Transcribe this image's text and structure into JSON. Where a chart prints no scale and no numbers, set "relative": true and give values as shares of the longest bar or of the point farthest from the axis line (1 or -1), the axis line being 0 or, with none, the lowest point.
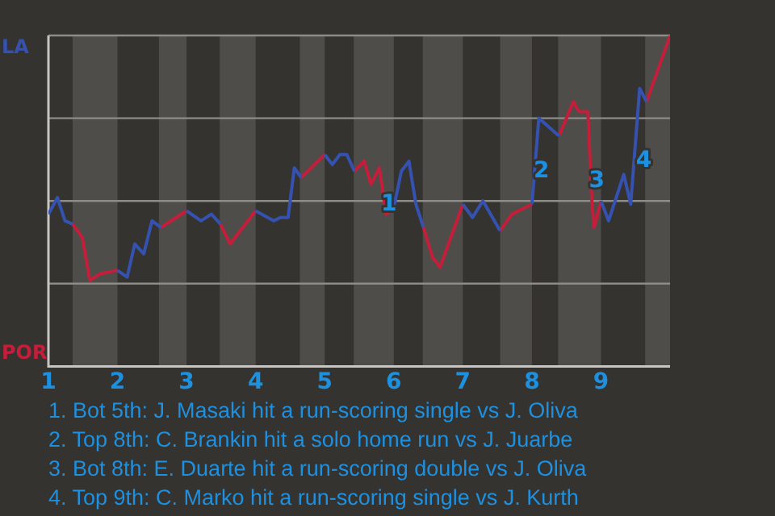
{
  "chart_data": {
    "type": "line",
    "relative": true,
    "series": [
      {
        "name": "LA",
        "color": "#3552b0",
        "x": [
          1.0,
          1.13,
          1.24,
          1.35,
          1.49,
          1.6,
          1.75,
          2.0,
          2.14,
          2.25,
          2.38,
          2.5,
          2.63,
          2.8,
          3.0,
          3.21,
          3.36,
          3.49,
          3.63,
          4.0,
          4.26,
          4.36,
          4.47,
          4.56,
          4.66,
          4.8,
          5.0,
          5.11,
          5.22,
          5.32,
          5.43,
          5.57,
          5.67,
          5.79,
          5.89,
          6.0,
          6.11,
          6.22,
          6.32,
          6.43,
          6.56,
          6.67,
          7.0,
          7.14,
          7.29,
          7.54,
          7.71,
          8.0,
          8.1,
          8.37,
          8.4,
          8.6,
          8.68,
          8.81,
          8.87,
          8.9,
          9.0,
          9.11,
          9.33,
          9.43,
          9.56,
          9.66
        ],
        "values": [
          0.46,
          0.51,
          0.44,
          0.43,
          null,
          null,
          null,
          0.29,
          0.27,
          0.37,
          0.34,
          0.44,
          0.42,
          null,
          0.47,
          0.44,
          0.46,
          0.43,
          null,
          0.47,
          0.44,
          0.45,
          0.45,
          0.6,
          0.57,
          null,
          0.64,
          0.61,
          0.64,
          0.64,
          0.59,
          null,
          null,
          null,
          null,
          0.48,
          0.59,
          0.62,
          0.49,
          0.42,
          null,
          null,
          0.49,
          0.45,
          0.5,
          0.41,
          null,
          0.49,
          0.75,
          0.7,
          0.7,
          null,
          null,
          null,
          null,
          null,
          0.5,
          0.44,
          0.58,
          0.49,
          0.84,
          0.8
        ]
      },
      {
        "name": "POR",
        "color": "#c41e3a",
        "x": [
          1.35,
          1.49,
          1.6,
          1.75,
          2.0,
          2.14,
          2.25,
          2.38,
          2.5,
          2.63,
          3.0,
          3.21,
          3.36,
          3.49,
          3.63,
          4.0,
          4.26,
          4.36,
          4.47,
          4.56,
          4.66,
          5.0,
          5.11,
          5.22,
          5.32,
          5.43,
          5.57,
          5.67,
          5.79,
          5.89,
          6.0,
          6.11,
          6.22,
          6.32,
          6.43,
          6.56,
          6.67,
          7.0,
          7.14,
          7.29,
          7.54,
          7.71,
          8.0,
          8.1,
          8.37,
          8.4,
          8.6,
          8.68,
          8.81,
          8.87,
          8.9,
          9.0,
          9.11,
          9.33,
          9.43,
          9.56,
          9.66,
          10.0
        ],
        "values": [
          0.43,
          0.39,
          0.26,
          0.28,
          0.29,
          null,
          null,
          null,
          null,
          0.42,
          0.47,
          null,
          null,
          0.43,
          0.37,
          0.47,
          null,
          null,
          null,
          null,
          0.57,
          0.64,
          null,
          null,
          null,
          0.59,
          0.62,
          0.55,
          0.6,
          0.46,
          0.48,
          null,
          null,
          null,
          0.42,
          0.33,
          0.3,
          0.49,
          null,
          null,
          0.41,
          0.46,
          0.49,
          null,
          null,
          0.7,
          0.8,
          0.77,
          0.77,
          0.49,
          0.42,
          0.5,
          null,
          null,
          null,
          null,
          0.8,
          1.0
        ]
      }
    ],
    "xlim": [
      1,
      10
    ],
    "xticks": [
      1,
      2,
      3,
      4,
      5,
      6,
      7,
      8,
      9
    ],
    "bands": [
      {
        "axis": "x",
        "from": 1.35,
        "to": 2,
        "color": "#4f4d4a"
      },
      {
        "axis": "x",
        "from": 2.6,
        "to": 3,
        "color": "#4f4d4a"
      },
      {
        "axis": "x",
        "from": 3.48,
        "to": 4,
        "color": "#4f4d4a"
      },
      {
        "axis": "x",
        "from": 4.64,
        "to": 5,
        "color": "#4f4d4a"
      },
      {
        "axis": "x",
        "from": 5.42,
        "to": 6,
        "color": "#4f4d4a"
      },
      {
        "axis": "x",
        "from": 6.42,
        "to": 7,
        "color": "#4f4d4a"
      },
      {
        "axis": "x",
        "from": 7.54,
        "to": 8,
        "color": "#4f4d4a"
      },
      {
        "axis": "x",
        "from": 8.38,
        "to": 9,
        "color": "#4f4d4a"
      },
      {
        "axis": "x",
        "from": 9.64,
        "to": 10,
        "color": "#4f4d4a"
      }
    ],
    "ref_lines": [
      {
        "axis": "y",
        "value": 0.25,
        "color": "#8e8c88"
      },
      {
        "axis": "y",
        "value": 0.5,
        "color": "#8e8c88"
      },
      {
        "axis": "y",
        "value": 0.75,
        "color": "#8e8c88"
      },
      {
        "axis": "y",
        "value": 1,
        "color": "#8e8c88"
      }
    ],
    "annotations": [
      {
        "text": "1",
        "x": 5.93,
        "y": 0.49
      },
      {
        "text": "2",
        "x": 8.14,
        "y": 0.59
      },
      {
        "text": "3",
        "x": 8.94,
        "y": 0.56
      },
      {
        "text": "4",
        "x": 9.62,
        "y": 0.62
      },
      "1. Bot 5th: J. Masaki hit a run-scoring single vs J. Oliva",
      "2. Top 8th: C. Brankin hit a solo home run vs J. Juarbe",
      "3. Bot 8th: E. Duarte hit a run-scoring double vs J. Oliva",
      "4. Top 9th: C. Marko hit a run-scoring single vs J. Kurth"
    ],
    "line_style": "solid",
    "marker": "none",
    "legend": false,
    "grid": false
  }
}
